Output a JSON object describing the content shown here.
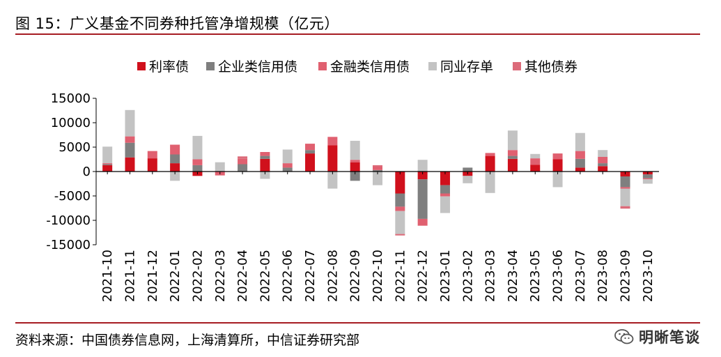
{
  "title": "图 15：广义基金不同券种托管净增规模（亿元）",
  "source": "资料来源：中国债券信息网，上海清算所，中信证券研究部",
  "brand": "明晰笔谈",
  "colors": {
    "rule": "#a61c22",
    "利率债": "#d0101c",
    "企业类信用债": "#7f7f7f",
    "金融类信用债": "#e06070",
    "同业存单": "#c3c3c3",
    "其他债券": "#dc6b7a"
  },
  "chart_data": {
    "type": "bar",
    "stacked": true,
    "ylim": [
      -15000,
      15000
    ],
    "yticks": [
      15000,
      10000,
      5000,
      0,
      -5000,
      -10000,
      -15000
    ],
    "legend_position": "top",
    "categories": [
      "2021-10",
      "2021-11",
      "2021-12",
      "2022-01",
      "2022-02",
      "2022-03",
      "2022-04",
      "2022-05",
      "2022-06",
      "2022-07",
      "2022-08",
      "2022-09",
      "2022-10",
      "2022-11",
      "2022-12",
      "2023-01",
      "2023-02",
      "2023-03",
      "2023-04",
      "2023-05",
      "2023-06",
      "2023-07",
      "2023-08",
      "2023-09",
      "2023-10"
    ],
    "series": [
      {
        "name": "利率债",
        "values": [
          1300,
          2900,
          2700,
          1700,
          -900,
          0,
          0,
          2600,
          0,
          3700,
          5400,
          1900,
          0,
          -4500,
          -1600,
          -2800,
          -900,
          3200,
          2600,
          1400,
          2500,
          800,
          1100,
          -1000,
          -600
        ]
      },
      {
        "name": "企业类信用债",
        "values": [
          200,
          3000,
          0,
          1800,
          1300,
          0,
          1500,
          600,
          800,
          700,
          0,
          -1900,
          300,
          -2700,
          -8100,
          -1700,
          800,
          0,
          600,
          0,
          0,
          1800,
          600,
          -2200,
          -800
        ]
      },
      {
        "name": "金融类信用债",
        "values": [
          200,
          1300,
          1500,
          2000,
          1200,
          -800,
          1100,
          800,
          900,
          1300,
          1700,
          500,
          700,
          -900,
          -1400,
          -600,
          0,
          600,
          1200,
          1300,
          1200,
          1600,
          1300,
          -300,
          -200
        ]
      },
      {
        "name": "同业存单",
        "values": [
          3400,
          5400,
          0,
          -1900,
          4800,
          1900,
          0,
          -1500,
          2800,
          0,
          -3500,
          3900,
          -2800,
          -4700,
          2400,
          -3400,
          -1500,
          -4400,
          4000,
          900,
          -3200,
          3700,
          1400,
          -3600,
          -900
        ]
      },
      {
        "name": "其他债券",
        "values": [
          0,
          0,
          0,
          0,
          0,
          0,
          500,
          0,
          0,
          0,
          0,
          0,
          300,
          -300,
          0,
          0,
          0,
          0,
          0,
          0,
          0,
          0,
          0,
          -500,
          0
        ]
      }
    ]
  }
}
